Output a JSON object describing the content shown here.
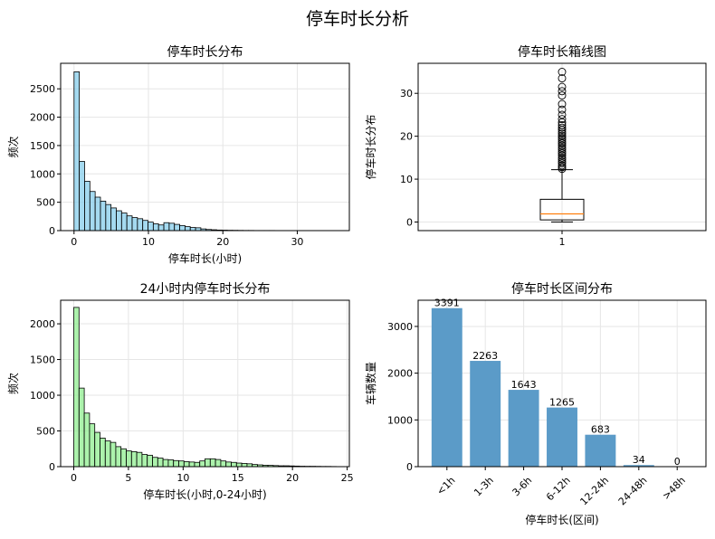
{
  "figure_title": "停车时长分析",
  "colors": {
    "hist_all": "#87ceeb",
    "hist_24h": "#90ee90",
    "bars": "#5b9bc8",
    "box_median": "#ff7f0e",
    "grid": "#e6e6e6"
  },
  "chart_data": [
    {
      "type": "bar",
      "title": "停车时长分布",
      "xlabel": "停车时长(小时)",
      "ylabel": "频次",
      "xlim": [
        -1.8,
        37.0
      ],
      "ylim": [
        0,
        2950
      ],
      "xticks": [
        0,
        10,
        20,
        30
      ],
      "yticks": [
        0,
        500,
        1000,
        1500,
        2000,
        2500
      ],
      "grid": true,
      "bin_start": 0,
      "bin_width": 0.71,
      "values": [
        2800,
        1220,
        870,
        690,
        590,
        520,
        460,
        400,
        350,
        310,
        260,
        230,
        210,
        180,
        150,
        120,
        100,
        140,
        130,
        110,
        90,
        70,
        55,
        50,
        30,
        20,
        15,
        10,
        8,
        6,
        5,
        4,
        3,
        3,
        2,
        2,
        2,
        2,
        1,
        1,
        1,
        1,
        1,
        1,
        1,
        1,
        1,
        1,
        1,
        1
      ]
    },
    {
      "type": "box",
      "title": "停车时长箱线图",
      "ylabel": "停车时长分布",
      "category": "1",
      "ylim": [
        -2,
        37
      ],
      "yticks": [
        0,
        10,
        20,
        30
      ],
      "grid": true,
      "whisker_low": 0,
      "q1": 0.5,
      "median": 1.9,
      "q3": 5.3,
      "whisker_high": 12.2,
      "outliers": [
        12.4,
        12.8,
        13.2,
        13.7,
        14.1,
        14.6,
        15.0,
        15.5,
        16.0,
        16.4,
        16.9,
        17.3,
        17.8,
        18.3,
        18.7,
        19.2,
        19.6,
        20.1,
        20.6,
        21.0,
        21.5,
        22.0,
        22.6,
        23.2,
        24.0,
        25.0,
        26.2,
        27.5,
        29.5,
        30.5,
        31.5,
        33.5,
        35.0
      ]
    },
    {
      "type": "bar",
      "title": "24小时内停车时长分布",
      "xlabel": "停车时长(小时,0-24小时)",
      "ylabel": "频次",
      "xlim": [
        -1.2,
        25.2
      ],
      "ylim": [
        0,
        2330
      ],
      "xticks": [
        0,
        5,
        10,
        15,
        20,
        25
      ],
      "yticks": [
        0,
        500,
        1000,
        1500,
        2000
      ],
      "grid": true,
      "bin_start": 0,
      "bin_width": 0.48,
      "values": [
        2230,
        1100,
        750,
        600,
        480,
        400,
        360,
        340,
        280,
        250,
        220,
        210,
        200,
        170,
        160,
        130,
        120,
        100,
        95,
        85,
        80,
        70,
        65,
        60,
        80,
        110,
        110,
        100,
        80,
        65,
        60,
        50,
        45,
        40,
        30,
        25,
        20,
        18,
        15,
        12,
        12,
        10,
        8,
        6,
        5,
        5,
        4,
        3,
        3,
        2
      ]
    },
    {
      "type": "bar",
      "title": "停车时长区间分布",
      "xlabel": "停车时长(区间)",
      "ylabel": "车辆数量",
      "categories": [
        "<1h",
        "1-3h",
        "3-6h",
        "6-12h",
        "12-24h",
        "24-48h",
        ">48h"
      ],
      "values": [
        3391,
        2263,
        1643,
        1265,
        683,
        34,
        0
      ],
      "ylim": [
        0,
        3560
      ],
      "yticks": [
        0,
        1000,
        2000,
        3000
      ],
      "grid": true
    }
  ]
}
